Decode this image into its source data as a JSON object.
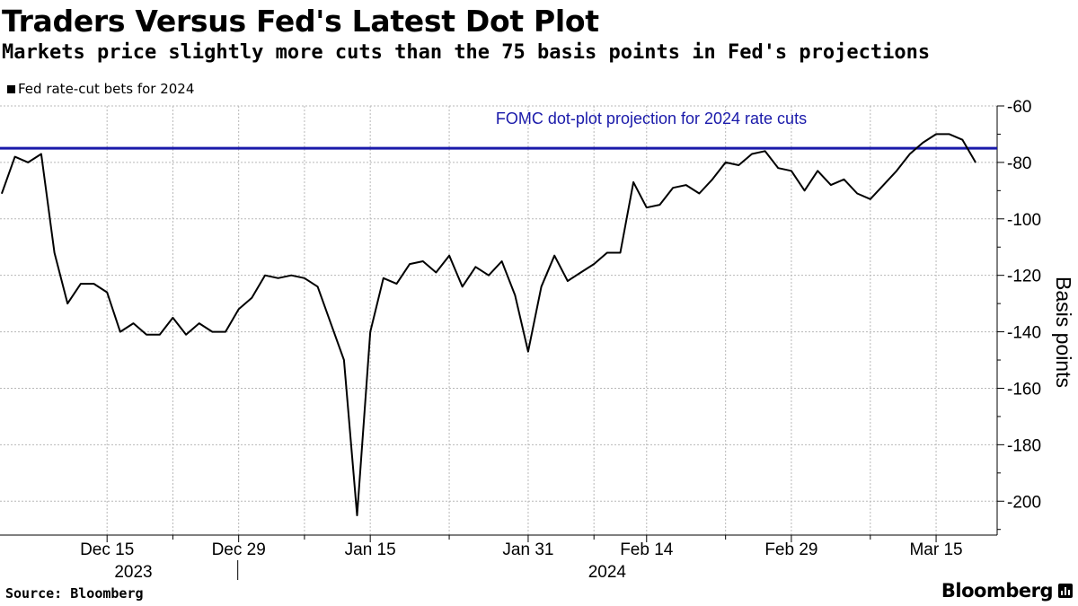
{
  "title": "Traders Versus Fed's Latest Dot Plot",
  "subtitle": "Markets price slightly more cuts than the 75 basis points in Fed's projections",
  "legend": "Fed rate-cut bets for 2024",
  "source": "Source: Bloomberg",
  "brand": "Bloomberg",
  "colors": {
    "series": "#000000",
    "reference": "#1a1aaa",
    "grid": "#b8b8b8"
  },
  "chart_data": {
    "type": "line",
    "title": "Traders Versus Fed's Latest Dot Plot",
    "ylabel": "Basis points",
    "ylim": [
      -212,
      -60
    ],
    "yticks": [
      -60,
      -80,
      -100,
      -120,
      -140,
      -160,
      -180,
      -200
    ],
    "x_major_ticks": [
      "Dec 15",
      "Dec 29",
      "Jan 15",
      "Jan 31",
      "Feb 14",
      "Feb 29",
      "Mar 15"
    ],
    "x_major_tick_index": [
      8,
      18,
      28,
      40,
      49,
      60,
      71
    ],
    "x_minor_tick_index": [
      13,
      23,
      34,
      45,
      55,
      66
    ],
    "year_labels": [
      {
        "label": "2023",
        "index": 10
      },
      {
        "label": "2024",
        "index": 46
      }
    ],
    "reference_line": {
      "label": "FOMC dot-plot projection for 2024 rate cuts",
      "value": -75
    },
    "series": [
      {
        "name": "Fed rate-cut bets for 2024",
        "values": [
          -91,
          -78,
          -80,
          -77,
          -112,
          -130,
          -123,
          -123,
          -126,
          -140,
          -137,
          -141,
          -141,
          -135,
          -141,
          -137,
          -140,
          -140,
          -132,
          -128,
          -120,
          -121,
          -120,
          -121,
          -124,
          -137,
          -150,
          -205,
          -140,
          -121,
          -123,
          -116,
          -115,
          -119,
          -113,
          -124,
          -117,
          -120,
          -115,
          -127,
          -147,
          -124,
          -113,
          -122,
          -119,
          -116,
          -112,
          -112,
          -87,
          -96,
          -95,
          -89,
          -88,
          -91,
          -86,
          -80,
          -81,
          -77,
          -76,
          -82,
          -83,
          -90,
          -83,
          -88,
          -86,
          -91,
          -93,
          -88,
          -83,
          -77,
          -73,
          -70,
          -70,
          -72,
          -80
        ]
      }
    ]
  }
}
